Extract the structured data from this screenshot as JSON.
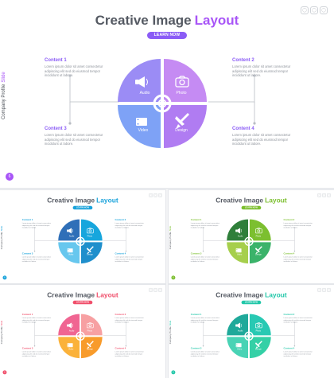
{
  "slide": {
    "title_main": "Creative Image",
    "title_accent": "Layout",
    "button_label": "LEARN NOW",
    "sidebar_main": "Company Profile",
    "sidebar_accent": "Slide",
    "page_number": "6",
    "window_controls": [
      "◯",
      "◯",
      "◯"
    ],
    "contents": [
      {
        "heading": "Content 1",
        "body": "Lorem ipsum dolor sit amet consectetur adipiscing elit sed do eiusmod tempor incididunt ut labore."
      },
      {
        "heading": "Content 2",
        "body": "Lorem ipsum dolor sit amet consectetur adipiscing elit sed do eiusmod tempor incididunt ut labore."
      },
      {
        "heading": "Content 3",
        "body": "Lorem ipsum dolor sit amet consectetur adipiscing elit sed do eiusmod tempor incididunt ut labore."
      },
      {
        "heading": "Content 4",
        "body": "Lorem ipsum dolor sit amet consectetur adipiscing elit sed do eiusmod tempor incididunt ut labore."
      }
    ],
    "quadrants": [
      {
        "label": "Audio",
        "icon": "speaker-icon"
      },
      {
        "label": "Photo",
        "icon": "camera-icon"
      },
      {
        "label": "Video",
        "icon": "video-icon"
      },
      {
        "label": "Design",
        "icon": "satellite-icon"
      }
    ]
  },
  "themes": [
    {
      "name": "purple",
      "accent": "#a855f7",
      "pill": "#8b5cf6",
      "q": [
        "#9b8cf5",
        "#c58bf3",
        "#7ea2f6",
        "#b07cf2"
      ]
    },
    {
      "name": "blue",
      "accent": "#1aa3db",
      "pill": "#1aa3db",
      "q": [
        "#2f6fb8",
        "#17a6dd",
        "#67c7ee",
        "#1f8fcc"
      ]
    },
    {
      "name": "green",
      "accent": "#7cbf2f",
      "pill": "#7cbf2f",
      "q": [
        "#2f7f3a",
        "#7cbf2f",
        "#a6cf4c",
        "#3bb36a"
      ]
    },
    {
      "name": "pink",
      "accent": "#f04f6b",
      "pill": "#f04f6b",
      "q": [
        "#f06592",
        "#f7a0a2",
        "#fbb23a",
        "#f89b2b"
      ]
    },
    {
      "name": "teal",
      "accent": "#22c7a9",
      "pill": "#22c7a9",
      "q": [
        "#1fa99a",
        "#28c9b3",
        "#49d3b5",
        "#34d0a6"
      ]
    }
  ]
}
